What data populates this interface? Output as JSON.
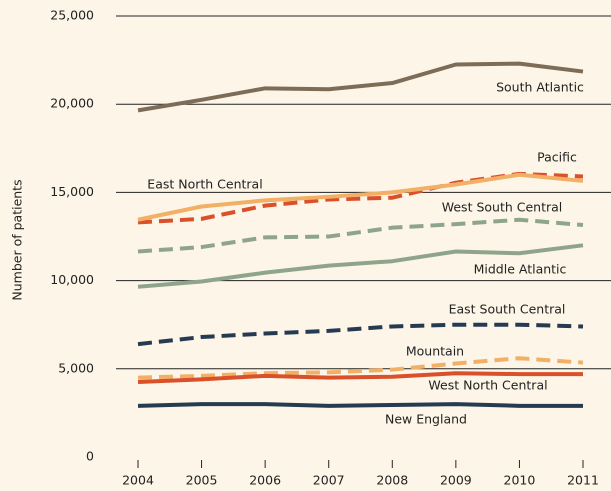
{
  "chart_data": {
    "type": "line",
    "y_label": "Number of patients",
    "x": [
      "2004",
      "2005",
      "2006",
      "2007",
      "2008",
      "2009",
      "2010",
      "2011"
    ],
    "ylim": [
      0,
      25000
    ],
    "yticks": [
      0,
      {
        "value": 5000,
        "label": "5,000"
      },
      {
        "value": 10000,
        "label": "10,000"
      },
      {
        "value": 15000,
        "label": "15,000"
      },
      {
        "value": 20000,
        "label": "20,000"
      },
      {
        "value": 25000,
        "label": "25,000"
      }
    ],
    "grid": true,
    "series": [
      {
        "name": "South Atlantic",
        "color": "#7d6c57",
        "dashed": false,
        "values": [
          19650,
          20250,
          20900,
          20850,
          21200,
          22250,
          22300,
          21850
        ]
      },
      {
        "name": "Pacific",
        "color": "#d9502a",
        "dashed": true,
        "values": [
          13300,
          13500,
          14250,
          14600,
          14700,
          15550,
          16050,
          15900
        ]
      },
      {
        "name": "East North Central",
        "color": "#f2b066",
        "dashed": false,
        "values": [
          13450,
          14200,
          14550,
          14750,
          15000,
          15450,
          16000,
          15650
        ]
      },
      {
        "name": "West South Central",
        "color": "#8fa58b",
        "dashed": true,
        "values": [
          11650,
          11900,
          12450,
          12500,
          13000,
          13200,
          13450,
          13150
        ]
      },
      {
        "name": "Middle Atlantic",
        "color": "#8fa58b",
        "dashed": false,
        "values": [
          9650,
          9950,
          10450,
          10850,
          11100,
          11650,
          11550,
          12000
        ]
      },
      {
        "name": "East South Central",
        "color": "#263a52",
        "dashed": true,
        "values": [
          6400,
          6800,
          7000,
          7150,
          7400,
          7500,
          7500,
          7400
        ]
      },
      {
        "name": "Mountain",
        "color": "#f2b066",
        "dashed": true,
        "values": [
          4500,
          4600,
          4750,
          4800,
          4950,
          5300,
          5600,
          5350
        ]
      },
      {
        "name": "West North Central",
        "color": "#d9502a",
        "dashed": false,
        "values": [
          4250,
          4400,
          4600,
          4500,
          4550,
          4750,
          4700,
          4700
        ]
      },
      {
        "name": "New England",
        "color": "#263a52",
        "dashed": false,
        "values": [
          2900,
          3000,
          3000,
          2900,
          2950,
          3000,
          2900,
          2900
        ]
      }
    ]
  }
}
